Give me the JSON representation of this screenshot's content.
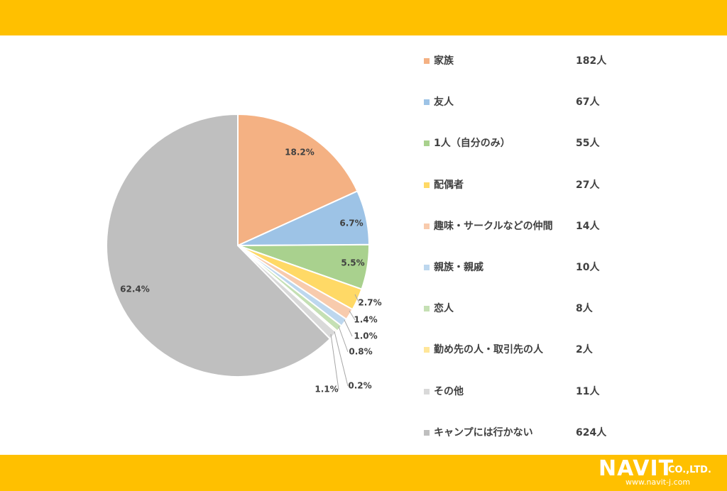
{
  "chart_data": {
    "type": "pie",
    "slices": [
      {
        "label": "家族",
        "count": "182人",
        "percent": 18.2,
        "percent_label": "18.2%",
        "color": "#F4B183"
      },
      {
        "label": "友人",
        "count": "67人",
        "percent": 6.7,
        "percent_label": "6.7%",
        "color": "#9DC3E6"
      },
      {
        "label": "1人（自分のみ）",
        "count": "55人",
        "percent": 5.5,
        "percent_label": "5.5%",
        "color": "#A9D18E"
      },
      {
        "label": "配偶者",
        "count": "27人",
        "percent": 2.7,
        "percent_label": "2.7%",
        "color": "#FFD966"
      },
      {
        "label": "趣味・サークルなどの仲間",
        "count": "14人",
        "percent": 1.4,
        "percent_label": "1.4%",
        "color": "#F8CBAD"
      },
      {
        "label": "親族・親戚",
        "count": "10人",
        "percent": 1.0,
        "percent_label": "1.0%",
        "color": "#BDD7EE"
      },
      {
        "label": "恋人",
        "count": "8人",
        "percent": 0.8,
        "percent_label": "0.8%",
        "color": "#C5E0B4"
      },
      {
        "label": "勤め先の人・取引先の人",
        "count": "2人",
        "percent": 0.2,
        "percent_label": "0.2%",
        "color": "#FFE699"
      },
      {
        "label": "その他",
        "count": "11人",
        "percent": 1.1,
        "percent_label": "1.1%",
        "color": "#D9D9D9"
      },
      {
        "label": "キャンプには行かない",
        "count": "624人",
        "percent": 62.4,
        "percent_label": "62.4%",
        "color": "#BFBFBF"
      }
    ],
    "legend_position": "right"
  },
  "logo": {
    "name": "NAVIT",
    "suffix": "CO.,LTD.",
    "url": "www.navit-j.com"
  },
  "colors": {
    "bar": "#FFC000",
    "text": "#404040"
  }
}
